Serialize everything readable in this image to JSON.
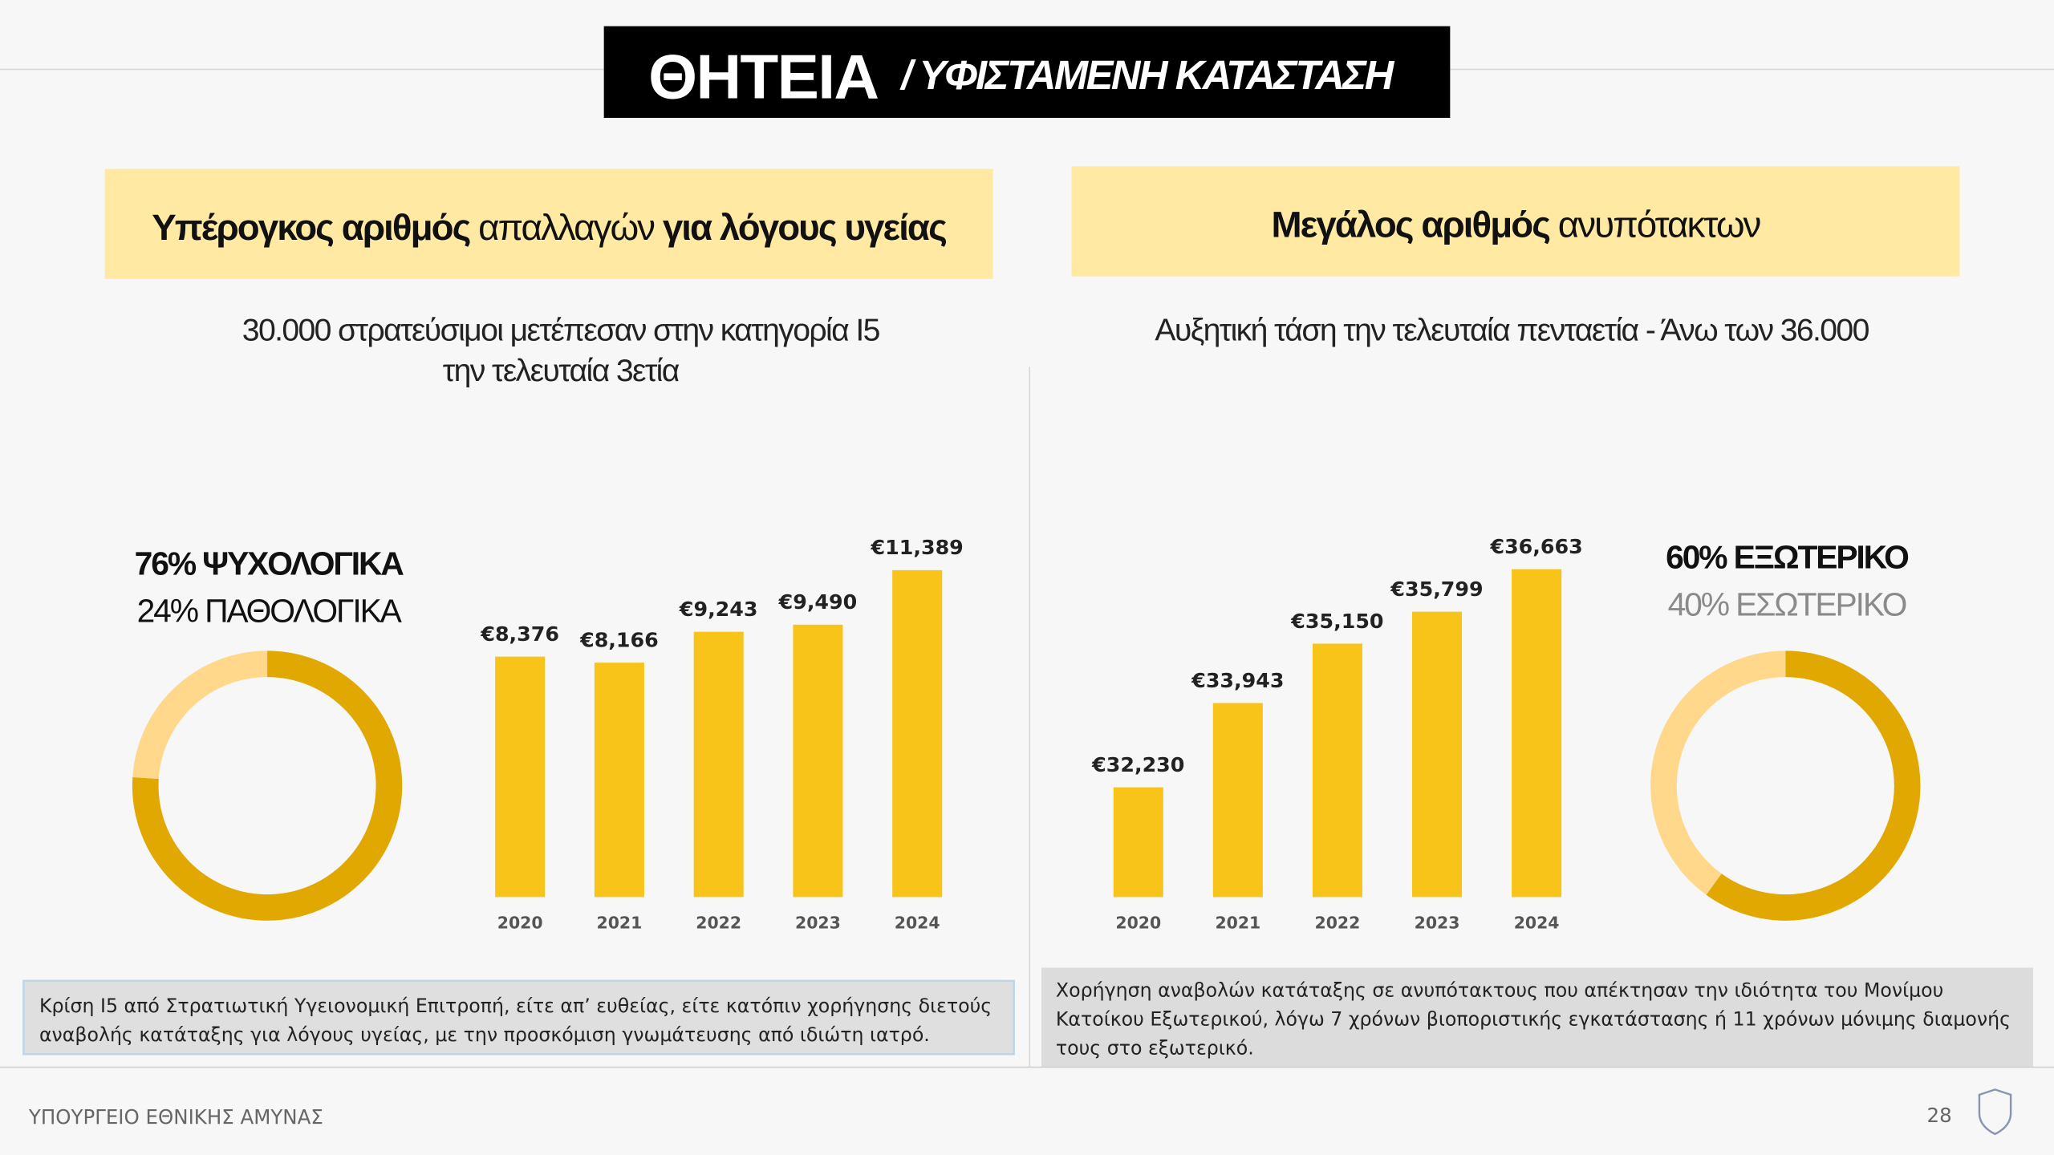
{
  "header": {
    "title": "ΘΗΤΕΙΑ",
    "subtitle": "/ ΥΦΙΣΤΑΜΕΝΗ ΚΑΤΑΣΤΑΣΗ"
  },
  "left": {
    "banner": [
      {
        "text": "Υπέρογκος αριθμός",
        "bold": true
      },
      {
        "text": " απαλλαγών ",
        "bold": false
      },
      {
        "text": "για λόγους υγείας",
        "bold": true
      }
    ],
    "lead": [
      "30.000 στρατεύσιμοι μετέπεσαν στην κατηγορία Ι5",
      "την τελευταία 3ετία"
    ],
    "note": [
      "Κρίση Ι5 από Στρατιωτική Υγειονομική Επιτροπή, είτε απ’ ευθείας, είτε κατόπιν χορήγησης διετούς",
      "αναβολής κατάταξης για λόγους υγείας, με την προσκόμιση γνωμάτευσης από ιδιώτη ιατρό."
    ]
  },
  "right": {
    "banner": [
      {
        "text": "Μεγάλος αριθμός",
        "bold": true
      },
      {
        "text": " ανυπότακτων",
        "bold": false
      }
    ],
    "lead": [
      "Αυξητική τάση την τελευταία πενταετία - Άνω των 36.000"
    ],
    "note": [
      "Χορήγηση αναβολών κατάταξης σε ανυπότακτους που απέκτησαν την ιδιότητα του Μονίμου",
      "Κατοίκου Εξωτερικού, λόγω 7 χρόνων βιοποριστικής εγκατάστασης ή 11 χρόνων μόνιμης διαμονής",
      "τους στο εξωτερικό."
    ]
  },
  "footer": {
    "ministry": "ΥΠΟΥΡΓΕΙΟ ΕΘΝΙΚΗΣ ΑΜΥΝΑΣ",
    "page": "28"
  },
  "chart_data": [
    {
      "type": "pie",
      "donut": true,
      "values": [
        76,
        24
      ],
      "value_labels": [
        "76% ΨΥΧΟΛΟΓΙΚΑ",
        "24% ΠΑΘΟΛΟΓΙΚΑ"
      ],
      "colors": [
        "#e0a800",
        "#ffd88c"
      ]
    },
    {
      "type": "bar",
      "categories": [
        "2020",
        "2021",
        "2022",
        "2023",
        "2024"
      ],
      "values": [
        8376,
        8166,
        9243,
        9490,
        11389
      ],
      "value_labels": [
        "€8,376",
        "€8,166",
        "€9,243",
        "€9,490",
        "€11,389"
      ],
      "color": "#f8c41a",
      "ylim": [
        0,
        12000
      ]
    },
    {
      "type": "bar",
      "categories": [
        "2020",
        "2021",
        "2022",
        "2023",
        "2024"
      ],
      "values": [
        32230,
        33943,
        35150,
        35799,
        36663
      ],
      "value_labels": [
        "€32,230",
        "€33,943",
        "€35,150",
        "€35,799",
        "€36,663"
      ],
      "color": "#f8c41a",
      "ylim": [
        30000,
        37000
      ]
    },
    {
      "type": "pie",
      "donut": true,
      "values": [
        60,
        40
      ],
      "value_labels": [
        "60% ΕΞΩΤΕΡΙΚΟ",
        "40% ΕΣΩΤΕΡΙΚΟ"
      ],
      "colors": [
        "#e0a800",
        "#ffd88c"
      ]
    }
  ]
}
